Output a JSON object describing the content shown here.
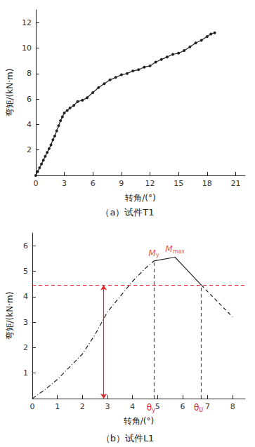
{
  "chart_data": [
    {
      "type": "line",
      "subtitle": "（a）试件T1",
      "xlabel": "转角/(°)",
      "ylabel": "弯矩/(kN·m)",
      "xlim": [
        0,
        22
      ],
      "xticks": [
        0,
        3,
        6,
        9,
        12,
        15,
        18,
        21
      ],
      "ylim": [
        0,
        13
      ],
      "yticks": [
        2,
        4,
        6,
        8,
        10,
        12
      ],
      "color": "#222222",
      "marker": "circle",
      "series": [
        {
          "line_style": "solid",
          "x": [
            0,
            0.2,
            0.4,
            0.6,
            0.8,
            1,
            1.2,
            1.4,
            1.6,
            1.8,
            2,
            2.2,
            2.4,
            2.6,
            2.8,
            3,
            3.3,
            3.6,
            4,
            4.4,
            4.9,
            5.4,
            6,
            6.6,
            7.2,
            7.8,
            8.4,
            9,
            9.6,
            10.2,
            10.8,
            11.4,
            12,
            12.6,
            13.2,
            13.8,
            14.4,
            15,
            15.6,
            16.2,
            16.8,
            17.4,
            18,
            18.4,
            18.8
          ],
          "values": [
            0,
            0.3,
            0.6,
            0.9,
            1.2,
            1.5,
            1.8,
            2.1,
            2.4,
            2.8,
            3.1,
            3.5,
            3.9,
            4.3,
            4.6,
            4.9,
            5.1,
            5.3,
            5.5,
            5.8,
            5.9,
            6.1,
            6.5,
            6.9,
            7.2,
            7.5,
            7.7,
            7.9,
            8.0,
            8.2,
            8.3,
            8.5,
            8.6,
            8.9,
            9.1,
            9.3,
            9.5,
            9.6,
            9.8,
            10.1,
            10.4,
            10.6,
            10.9,
            11.1,
            11.2
          ]
        }
      ]
    },
    {
      "type": "line",
      "subtitle": "（b）试件L1",
      "xlabel": "转角/(°)",
      "ylabel": "弯矩/(kN·m)",
      "xlim": [
        0,
        8.5
      ],
      "xticks": [
        0,
        1,
        2,
        3,
        4,
        {
          "value": 4.85,
          "label": "θ",
          "sub": "y",
          "color": "#e0262a"
        },
        5,
        6,
        {
          "value": 6.75,
          "label": "θ",
          "sub": "U",
          "color": "#e0262a"
        },
        7,
        8
      ],
      "ylim": [
        0,
        6.5
      ],
      "yticks": [
        1,
        2,
        3,
        4,
        5,
        6
      ],
      "color": "#222222",
      "marker": "none",
      "series": [
        {
          "line_style": "dashdot",
          "x": [
            0,
            0.5,
            1,
            1.5,
            2,
            2.5,
            3,
            3.5,
            4,
            4.5,
            4.85
          ],
          "values": [
            0,
            0.35,
            0.75,
            1.25,
            1.75,
            2.5,
            3.4,
            4.0,
            4.6,
            5.1,
            5.4
          ]
        },
        {
          "line_style": "solid",
          "x": [
            4.85,
            5.7,
            6.75
          ],
          "values": [
            5.4,
            5.55,
            4.45
          ]
        },
        {
          "line_style": "dashed",
          "x": [
            6.75,
            7.5,
            8
          ],
          "values": [
            4.45,
            3.7,
            3.2
          ]
        }
      ],
      "annotations": [
        {
          "type": "text",
          "text": "M",
          "sub": "y",
          "x": 4.85,
          "y": 5.4,
          "color": "#e0262a"
        },
        {
          "type": "text",
          "text": "M",
          "sub": "max",
          "x": 5.7,
          "y": 5.55,
          "color": "#e0262a"
        },
        {
          "type": "hline",
          "y": 4.45,
          "color": "#e0262a",
          "line_style": "dashed"
        },
        {
          "type": "arrow",
          "x": 2.85,
          "y0": 0,
          "y1": 4.45,
          "color": "#e0262a"
        },
        {
          "type": "vline",
          "x": 4.85,
          "y0": 0,
          "y1": 5.4,
          "color": "#555555",
          "line_style": "dashed"
        },
        {
          "type": "vline",
          "x": 6.75,
          "y0": 0,
          "y1": 4.45,
          "color": "#555555",
          "line_style": "dashed"
        }
      ]
    }
  ]
}
